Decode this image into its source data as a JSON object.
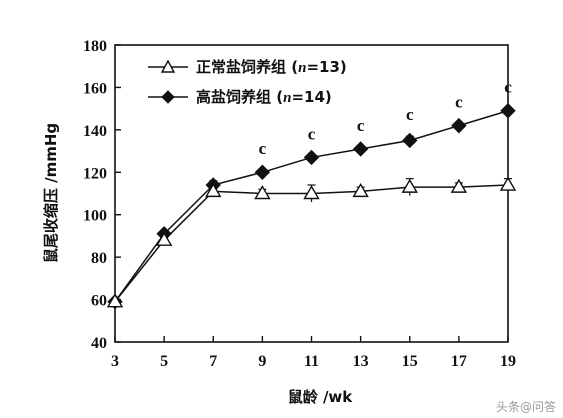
{
  "chart_data": {
    "type": "line",
    "xlabel": "鼠龄 /wk",
    "ylabel": "鼠尾收缩压 /mmHg",
    "x": [
      3,
      5,
      7,
      9,
      11,
      13,
      15,
      17,
      19
    ],
    "xticks": [
      "3",
      "5",
      "7",
      "9",
      "11",
      "13",
      "15",
      "17",
      "19"
    ],
    "yticks": [
      "40",
      "60",
      "80",
      "100",
      "120",
      "140",
      "160",
      "180"
    ],
    "xlim": [
      3,
      19
    ],
    "ylim": [
      40,
      180
    ],
    "grid": false,
    "legend_position": "top-left",
    "series": [
      {
        "name": "正常盐饲养组 (n=13)",
        "marker": "open-triangle",
        "values": [
          59,
          88,
          111,
          110,
          110,
          111,
          113,
          113,
          114
        ],
        "error": [
          0,
          1,
          2,
          2,
          4,
          2,
          4,
          2,
          3
        ]
      },
      {
        "name": "高盐饲养组 (n=14)",
        "marker": "filled-diamond",
        "values": [
          59,
          91,
          114,
          120,
          127,
          131,
          135,
          142,
          149
        ],
        "error": [
          0,
          1,
          2,
          1,
          1,
          1,
          2,
          1,
          1
        ]
      }
    ],
    "annotations": [
      {
        "x": 9,
        "text": "c"
      },
      {
        "x": 11,
        "text": "c"
      },
      {
        "x": 13,
        "text": "c"
      },
      {
        "x": 15,
        "text": "c"
      },
      {
        "x": 17,
        "text": "c"
      },
      {
        "x": 19,
        "text": "c"
      }
    ]
  },
  "watermark": "头条@问答"
}
